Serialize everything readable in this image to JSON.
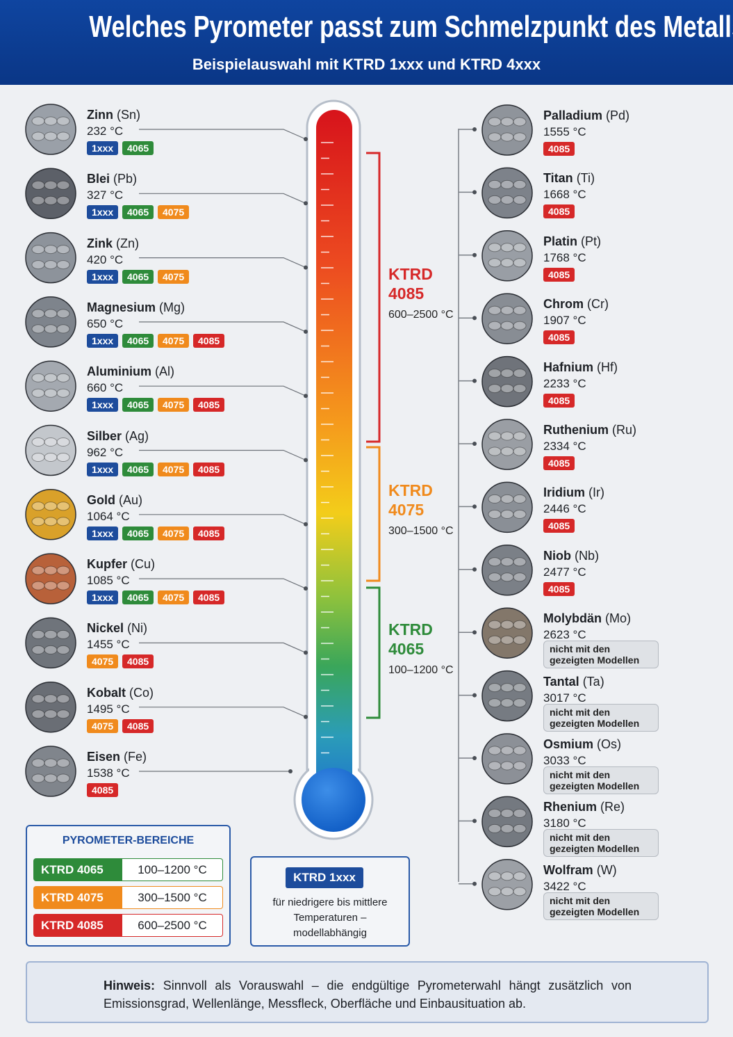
{
  "header": {
    "title": "Welches Pyrometer passt zum Schmelzpunkt des Metalls?",
    "subtitle": "Beispielauswahl mit KTRD 1xxx und KTRD 4xxx"
  },
  "left_metals": [
    {
      "name": "Zinn",
      "symbol": "(Sn)",
      "temp": "232 °C",
      "color": "#9aa0a8",
      "badges": [
        {
          "text": "1xxx",
          "color": "#1d4c9c"
        },
        {
          "text": "4065",
          "color": "#2e8b3a"
        }
      ]
    },
    {
      "name": "Blei",
      "symbol": "(Pb)",
      "temp": "327 °C",
      "color": "#5c6068",
      "badges": [
        {
          "text": "1xxx",
          "color": "#1d4c9c"
        },
        {
          "text": "4065",
          "color": "#2e8b3a"
        },
        {
          "text": "4075",
          "color": "#f08a1c"
        }
      ]
    },
    {
      "name": "Zink",
      "symbol": "(Zn)",
      "temp": "420 °C",
      "color": "#8d939b",
      "badges": [
        {
          "text": "1xxx",
          "color": "#1d4c9c"
        },
        {
          "text": "4065",
          "color": "#2e8b3a"
        },
        {
          "text": "4075",
          "color": "#f08a1c"
        }
      ]
    },
    {
      "name": "Magnesium",
      "symbol": "(Mg)",
      "temp": "650 °C",
      "color": "#7e848c",
      "badges": [
        {
          "text": "1xxx",
          "color": "#1d4c9c"
        },
        {
          "text": "4065",
          "color": "#2e8b3a"
        },
        {
          "text": "4075",
          "color": "#f08a1c"
        },
        {
          "text": "4085",
          "color": "#d62828"
        }
      ]
    },
    {
      "name": "Aluminium",
      "symbol": "(Al)",
      "temp": "660 °C",
      "color": "#a4a9b0",
      "badges": [
        {
          "text": "1xxx",
          "color": "#1d4c9c"
        },
        {
          "text": "4065",
          "color": "#2e8b3a"
        },
        {
          "text": "4075",
          "color": "#f08a1c"
        },
        {
          "text": "4085",
          "color": "#d62828"
        }
      ]
    },
    {
      "name": "Silber",
      "symbol": "(Ag)",
      "temp": "962 °C",
      "color": "#c3c7cc",
      "badges": [
        {
          "text": "1xxx",
          "color": "#1d4c9c"
        },
        {
          "text": "4065",
          "color": "#2e8b3a"
        },
        {
          "text": "4075",
          "color": "#f08a1c"
        },
        {
          "text": "4085",
          "color": "#d62828"
        }
      ]
    },
    {
      "name": "Gold",
      "symbol": "(Au)",
      "temp": "1064 °C",
      "color": "#d9a12a",
      "badges": [
        {
          "text": "1xxx",
          "color": "#1d4c9c"
        },
        {
          "text": "4065",
          "color": "#2e8b3a"
        },
        {
          "text": "4075",
          "color": "#f08a1c"
        },
        {
          "text": "4085",
          "color": "#d62828"
        }
      ]
    },
    {
      "name": "Kupfer",
      "symbol": "(Cu)",
      "temp": "1085 °C",
      "color": "#b8613a",
      "badges": [
        {
          "text": "1xxx",
          "color": "#1d4c9c"
        },
        {
          "text": "4065",
          "color": "#2e8b3a"
        },
        {
          "text": "4075",
          "color": "#f08a1c"
        },
        {
          "text": "4085",
          "color": "#d62828"
        }
      ]
    },
    {
      "name": "Nickel",
      "symbol": "(Ni)",
      "temp": "1455 °C",
      "color": "#6f747b",
      "badges": [
        {
          "text": "4075",
          "color": "#f08a1c"
        },
        {
          "text": "4085",
          "color": "#d62828"
        }
      ]
    },
    {
      "name": "Kobalt",
      "symbol": "(Co)",
      "temp": "1495 °C",
      "color": "#6a6e75",
      "badges": [
        {
          "text": "4075",
          "color": "#f08a1c"
        },
        {
          "text": "4085",
          "color": "#d62828"
        }
      ]
    },
    {
      "name": "Eisen",
      "symbol": "(Fe)",
      "temp": "1538 °C",
      "color": "#80858c",
      "badges": [
        {
          "text": "4085",
          "color": "#d62828"
        }
      ]
    }
  ],
  "right_metals": [
    {
      "name": "Palladium",
      "symbol": "(Pd)",
      "temp": "1555 °C",
      "color": "#8f949b",
      "badges": [
        {
          "text": "4085",
          "color": "#d62828"
        }
      ]
    },
    {
      "name": "Titan",
      "symbol": "(Ti)",
      "temp": "1668 °C",
      "color": "#7d828a",
      "badges": [
        {
          "text": "4085",
          "color": "#d62828"
        }
      ]
    },
    {
      "name": "Platin",
      "symbol": "(Pt)",
      "temp": "1768 °C",
      "color": "#999ea5",
      "badges": [
        {
          "text": "4085",
          "color": "#d62828"
        }
      ]
    },
    {
      "name": "Chrom",
      "symbol": "(Cr)",
      "temp": "1907 °C",
      "color": "#888d94",
      "badges": [
        {
          "text": "4085",
          "color": "#d62828"
        }
      ]
    },
    {
      "name": "Hafnium",
      "symbol": "(Hf)",
      "temp": "2233 °C",
      "color": "#6f737a",
      "badges": [
        {
          "text": "4085",
          "color": "#d62828"
        }
      ]
    },
    {
      "name": "Ruthenium",
      "symbol": "(Ru)",
      "temp": "2334 °C",
      "color": "#9a9ea4",
      "badges": [
        {
          "text": "4085",
          "color": "#d62828"
        }
      ]
    },
    {
      "name": "Iridium",
      "symbol": "(Ir)",
      "temp": "2446 °C",
      "color": "#8a8f96",
      "badges": [
        {
          "text": "4085",
          "color": "#d62828"
        }
      ]
    },
    {
      "name": "Niob",
      "symbol": "(Nb)",
      "temp": "2477 °C",
      "color": "#7b8087",
      "badges": [
        {
          "text": "4085",
          "color": "#d62828"
        }
      ]
    },
    {
      "name": "Molybdän",
      "symbol": "(Mo)",
      "temp": "2623 °C",
      "color": "#83776a",
      "note": "nicht mit den gezeigten Modellen"
    },
    {
      "name": "Tantal",
      "symbol": "(Ta)",
      "temp": "3017 °C",
      "color": "#767b82",
      "note": "nicht mit den gezeigten Modellen"
    },
    {
      "name": "Osmium",
      "symbol": "(Os)",
      "temp": "3033 °C",
      "color": "#8c9097",
      "note": "nicht mit den gezeigten Modellen"
    },
    {
      "name": "Rhenium",
      "symbol": "(Re)",
      "temp": "3180 °C",
      "color": "#747980",
      "note": "nicht mit den gezeigten Modellen"
    },
    {
      "name": "Wolfram",
      "symbol": "(W)",
      "temp": "3422 °C",
      "color": "#9ca0a6",
      "note": "nicht mit den gezeigten Modellen"
    }
  ],
  "ranges": [
    {
      "label": "KTRD",
      "model": "4085",
      "range": "600–2500 °C",
      "color": "#d62828"
    },
    {
      "label": "KTRD",
      "model": "4075",
      "range": "300–1500 °C",
      "color": "#f08a1c"
    },
    {
      "label": "KTRD",
      "model": "4065",
      "range": "100–1200 °C",
      "color": "#2e8b3a"
    }
  ],
  "legend": {
    "title": "PYROMETER-BEREICHE",
    "rows": [
      {
        "label": "KTRD 4065",
        "range": "100–1200 °C",
        "color": "#2e8b3a"
      },
      {
        "label": "KTRD 4075",
        "range": "300–1500 °C",
        "color": "#f08a1c"
      },
      {
        "label": "KTRD 4085",
        "range": "600–2500 °C",
        "color": "#d62828"
      }
    ]
  },
  "ktrd1xxx": {
    "title": "KTRD 1xxx",
    "text": "für niedrigere bis mittlere Temperaturen – modellabhängig"
  },
  "note": {
    "label": "Hinweis:",
    "text": "Sinnvoll als Vorauswahl – die endgültige Pyrometerwahl hängt zusätzlich von Emissionsgrad, Wellenlänge, Messfleck, Oberfläche und Einbausituation ab."
  }
}
